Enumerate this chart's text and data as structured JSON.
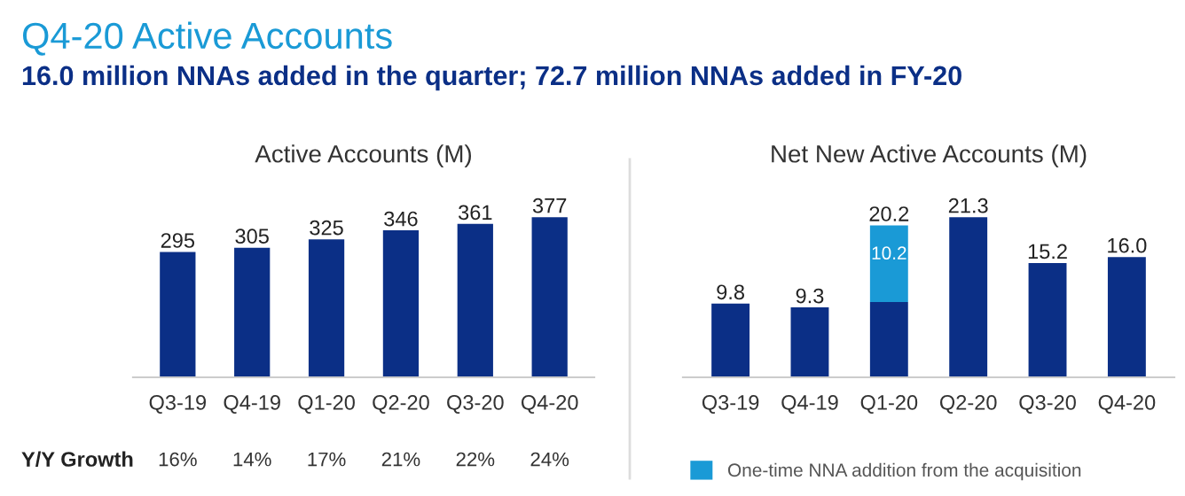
{
  "chart_data": [
    {
      "type": "other",
      "title": "Q4-20 Active Accounts",
      "subtitle": "16.0 million NNAs added in the quarter; 72.7 million NNAs added in FY-20"
    },
    {
      "type": "bar",
      "title": "Active Accounts (M)",
      "categories": [
        "Q3-19",
        "Q4-19",
        "Q1-20",
        "Q2-20",
        "Q3-20",
        "Q4-20"
      ],
      "series": [
        {
          "color": "#0b2f86",
          "values": [
            295,
            305,
            325,
            346,
            361,
            377
          ]
        }
      ],
      "data_labels": true,
      "grid": false,
      "legend": false,
      "annotations": [
        "Y/Y Growth",
        "16%",
        "14%",
        "17%",
        "21%",
        "22%",
        "24%"
      ]
    },
    {
      "type": "bar",
      "title": "Net New Active Accounts (M)",
      "categories": [
        "Q3-19",
        "Q4-19",
        "Q1-20",
        "Q2-20",
        "Q3-20",
        "Q4-20"
      ],
      "stacked": true,
      "series": [
        {
          "color": "#0b2f86",
          "values": [
            9.8,
            9.3,
            10.0,
            21.3,
            15.2,
            16.0
          ]
        },
        {
          "name": "One-time NNA addition from the acquisition",
          "color": "#1a9ad6",
          "values": [
            null,
            null,
            10.2,
            null,
            null,
            null
          ],
          "value_labels": [
            null,
            null,
            "10.2",
            null,
            null,
            null
          ]
        }
      ],
      "totals": [
        "9.8",
        "9.3",
        "20.2",
        "21.3",
        "15.2",
        "16.0"
      ],
      "grid": false,
      "legend": "bottom left"
    }
  ]
}
